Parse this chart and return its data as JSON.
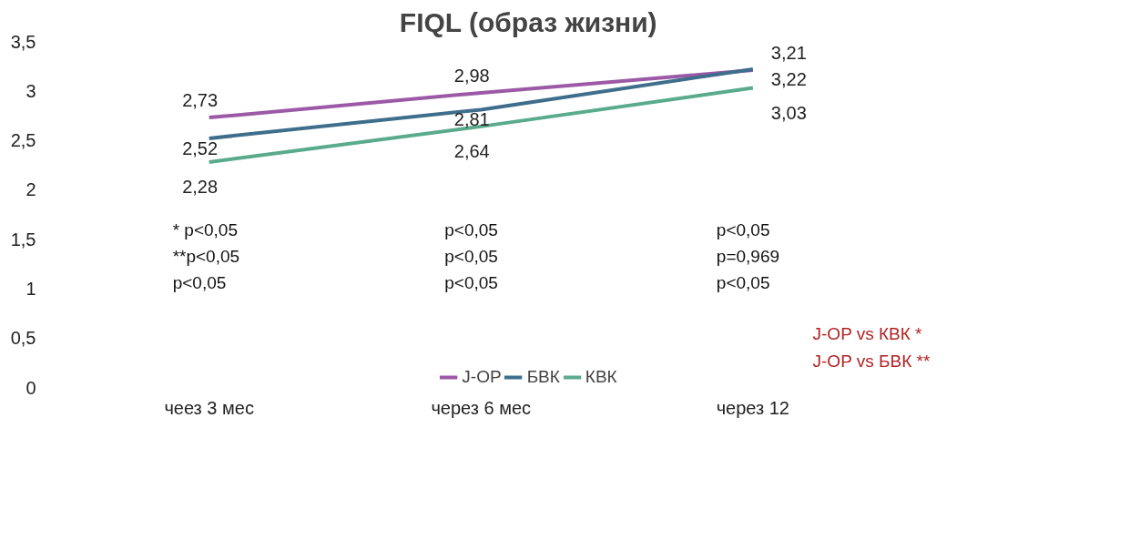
{
  "chart_data": {
    "type": "line",
    "title": "FIQL (образ жизни)",
    "categories": [
      "чеез 3 мес",
      "через 6 мес",
      "через 12"
    ],
    "series": [
      {
        "name": "J-OP",
        "color": "#9b59a6",
        "values": [
          2.73,
          2.98,
          3.21
        ],
        "value_labels": [
          "2,73",
          "2,98",
          "3,21"
        ]
      },
      {
        "name": "БВК",
        "color": "#3f6e8c",
        "values": [
          2.52,
          2.81,
          3.22
        ],
        "value_labels": [
          "2,52",
          "2,81",
          "3,22"
        ]
      },
      {
        "name": "КВК",
        "color": "#5aab8c",
        "values": [
          2.28,
          2.64,
          3.03
        ],
        "value_labels": [
          "2,28",
          "2,64",
          "3,03"
        ]
      }
    ],
    "ylim": [
      0,
      3.5
    ],
    "yticks": [
      {
        "value": 0,
        "label": "0"
      },
      {
        "value": 0.5,
        "label": "0,5"
      },
      {
        "value": 1,
        "label": "1"
      },
      {
        "value": 1.5,
        "label": "1,5"
      },
      {
        "value": 2,
        "label": "2"
      },
      {
        "value": 2.5,
        "label": "2,5"
      },
      {
        "value": 3,
        "label": "3"
      },
      {
        "value": 3.5,
        "label": "3,5"
      }
    ],
    "grid": false,
    "legend": "bottom",
    "marker": "none",
    "line_style": "solid",
    "annotations": [
      "* p<0,05",
      "**p<0,05",
      "p<0,05",
      "p<0,05",
      "p<0,05",
      "p<0,05",
      "p<0,05",
      "p=0,969",
      "p<0,05",
      "J-OP vs КВК  *",
      "J-OP vs БВК **"
    ]
  }
}
